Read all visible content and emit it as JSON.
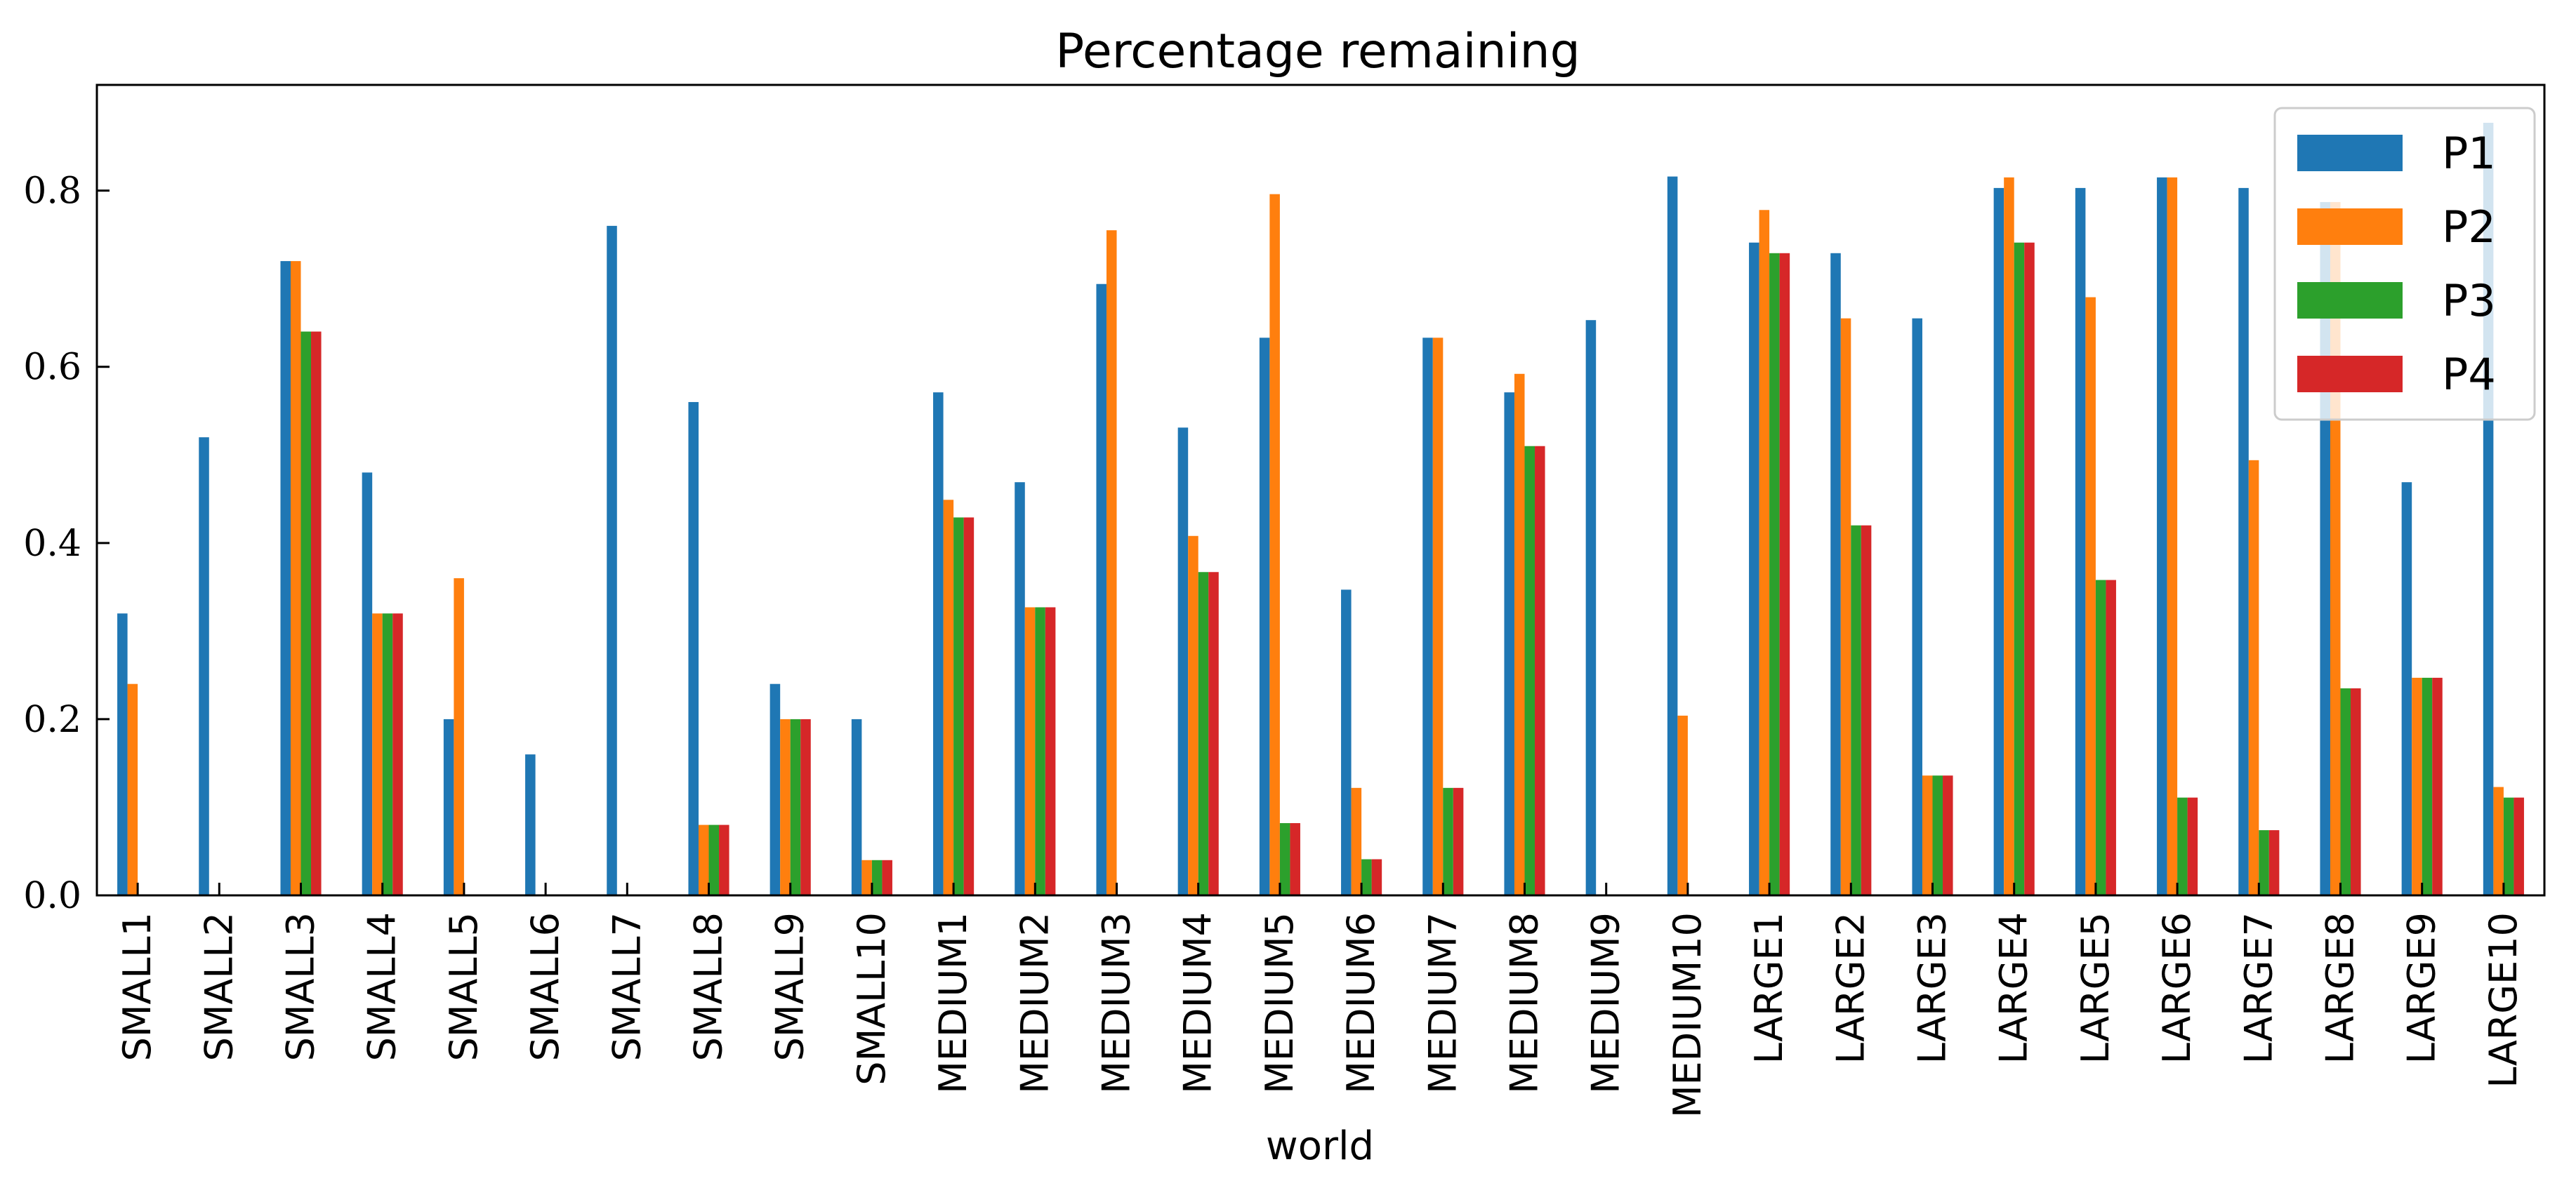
{
  "chart_data": {
    "type": "bar",
    "title": "Percentage remaining",
    "xlabel": "world",
    "ylabel": "",
    "ylim": [
      0,
      0.92
    ],
    "yticks": [
      "0.0",
      "0.2",
      "0.4",
      "0.6",
      "0.8"
    ],
    "yticks_values": [
      0,
      0.2,
      0.4,
      0.6,
      0.8
    ],
    "grid": false,
    "legend_position": "top-right",
    "categories": [
      "SMALL1",
      "SMALL2",
      "SMALL3",
      "SMALL4",
      "SMALL5",
      "SMALL6",
      "SMALL7",
      "SMALL8",
      "SMALL9",
      "SMALL10",
      "MEDIUM1",
      "MEDIUM2",
      "MEDIUM3",
      "MEDIUM4",
      "MEDIUM5",
      "MEDIUM6",
      "MEDIUM7",
      "MEDIUM8",
      "MEDIUM9",
      "MEDIUM10",
      "LARGE1",
      "LARGE2",
      "LARGE3",
      "LARGE4",
      "LARGE5",
      "LARGE6",
      "LARGE7",
      "LARGE8",
      "LARGE9",
      "LARGE10"
    ],
    "series": [
      {
        "name": "P1",
        "color": "#1f77b4",
        "values": [
          0.32,
          0.52,
          0.72,
          0.48,
          0.2,
          0.16,
          0.76,
          0.56,
          0.24,
          0.2,
          0.571,
          0.469,
          0.694,
          0.531,
          0.633,
          0.347,
          0.633,
          0.571,
          0.653,
          0.816,
          0.741,
          0.729,
          0.655,
          0.803,
          0.803,
          0.815,
          0.803,
          0.787,
          0.469,
          0.877
        ]
      },
      {
        "name": "P2",
        "color": "#ff7f0e",
        "values": [
          0.24,
          0,
          0.72,
          0.32,
          0.36,
          0,
          0,
          0.08,
          0.2,
          0.04,
          0.449,
          0.327,
          0.755,
          0.408,
          0.796,
          0.122,
          0.633,
          0.592,
          0,
          0.204,
          0.778,
          0.655,
          0.136,
          0.815,
          0.679,
          0.815,
          0.494,
          0.787,
          0.247,
          0.123
        ]
      },
      {
        "name": "P3",
        "color": "#2ca02c",
        "values": [
          0,
          0,
          0.64,
          0.32,
          0,
          0,
          0,
          0.08,
          0.2,
          0.04,
          0.429,
          0.327,
          0,
          0.367,
          0.082,
          0.041,
          0.122,
          0.51,
          0,
          0,
          0.729,
          0.42,
          0.136,
          0.741,
          0.358,
          0.111,
          0.074,
          0.235,
          0.247,
          0.111
        ]
      },
      {
        "name": "P4",
        "color": "#d62728",
        "values": [
          0,
          0,
          0.64,
          0.32,
          0,
          0,
          0,
          0.08,
          0.2,
          0.04,
          0.429,
          0.327,
          0,
          0.367,
          0.082,
          0.041,
          0.122,
          0.51,
          0,
          0,
          0.729,
          0.42,
          0.136,
          0.741,
          0.358,
          0.111,
          0.074,
          0.235,
          0.247,
          0.111
        ]
      }
    ]
  }
}
